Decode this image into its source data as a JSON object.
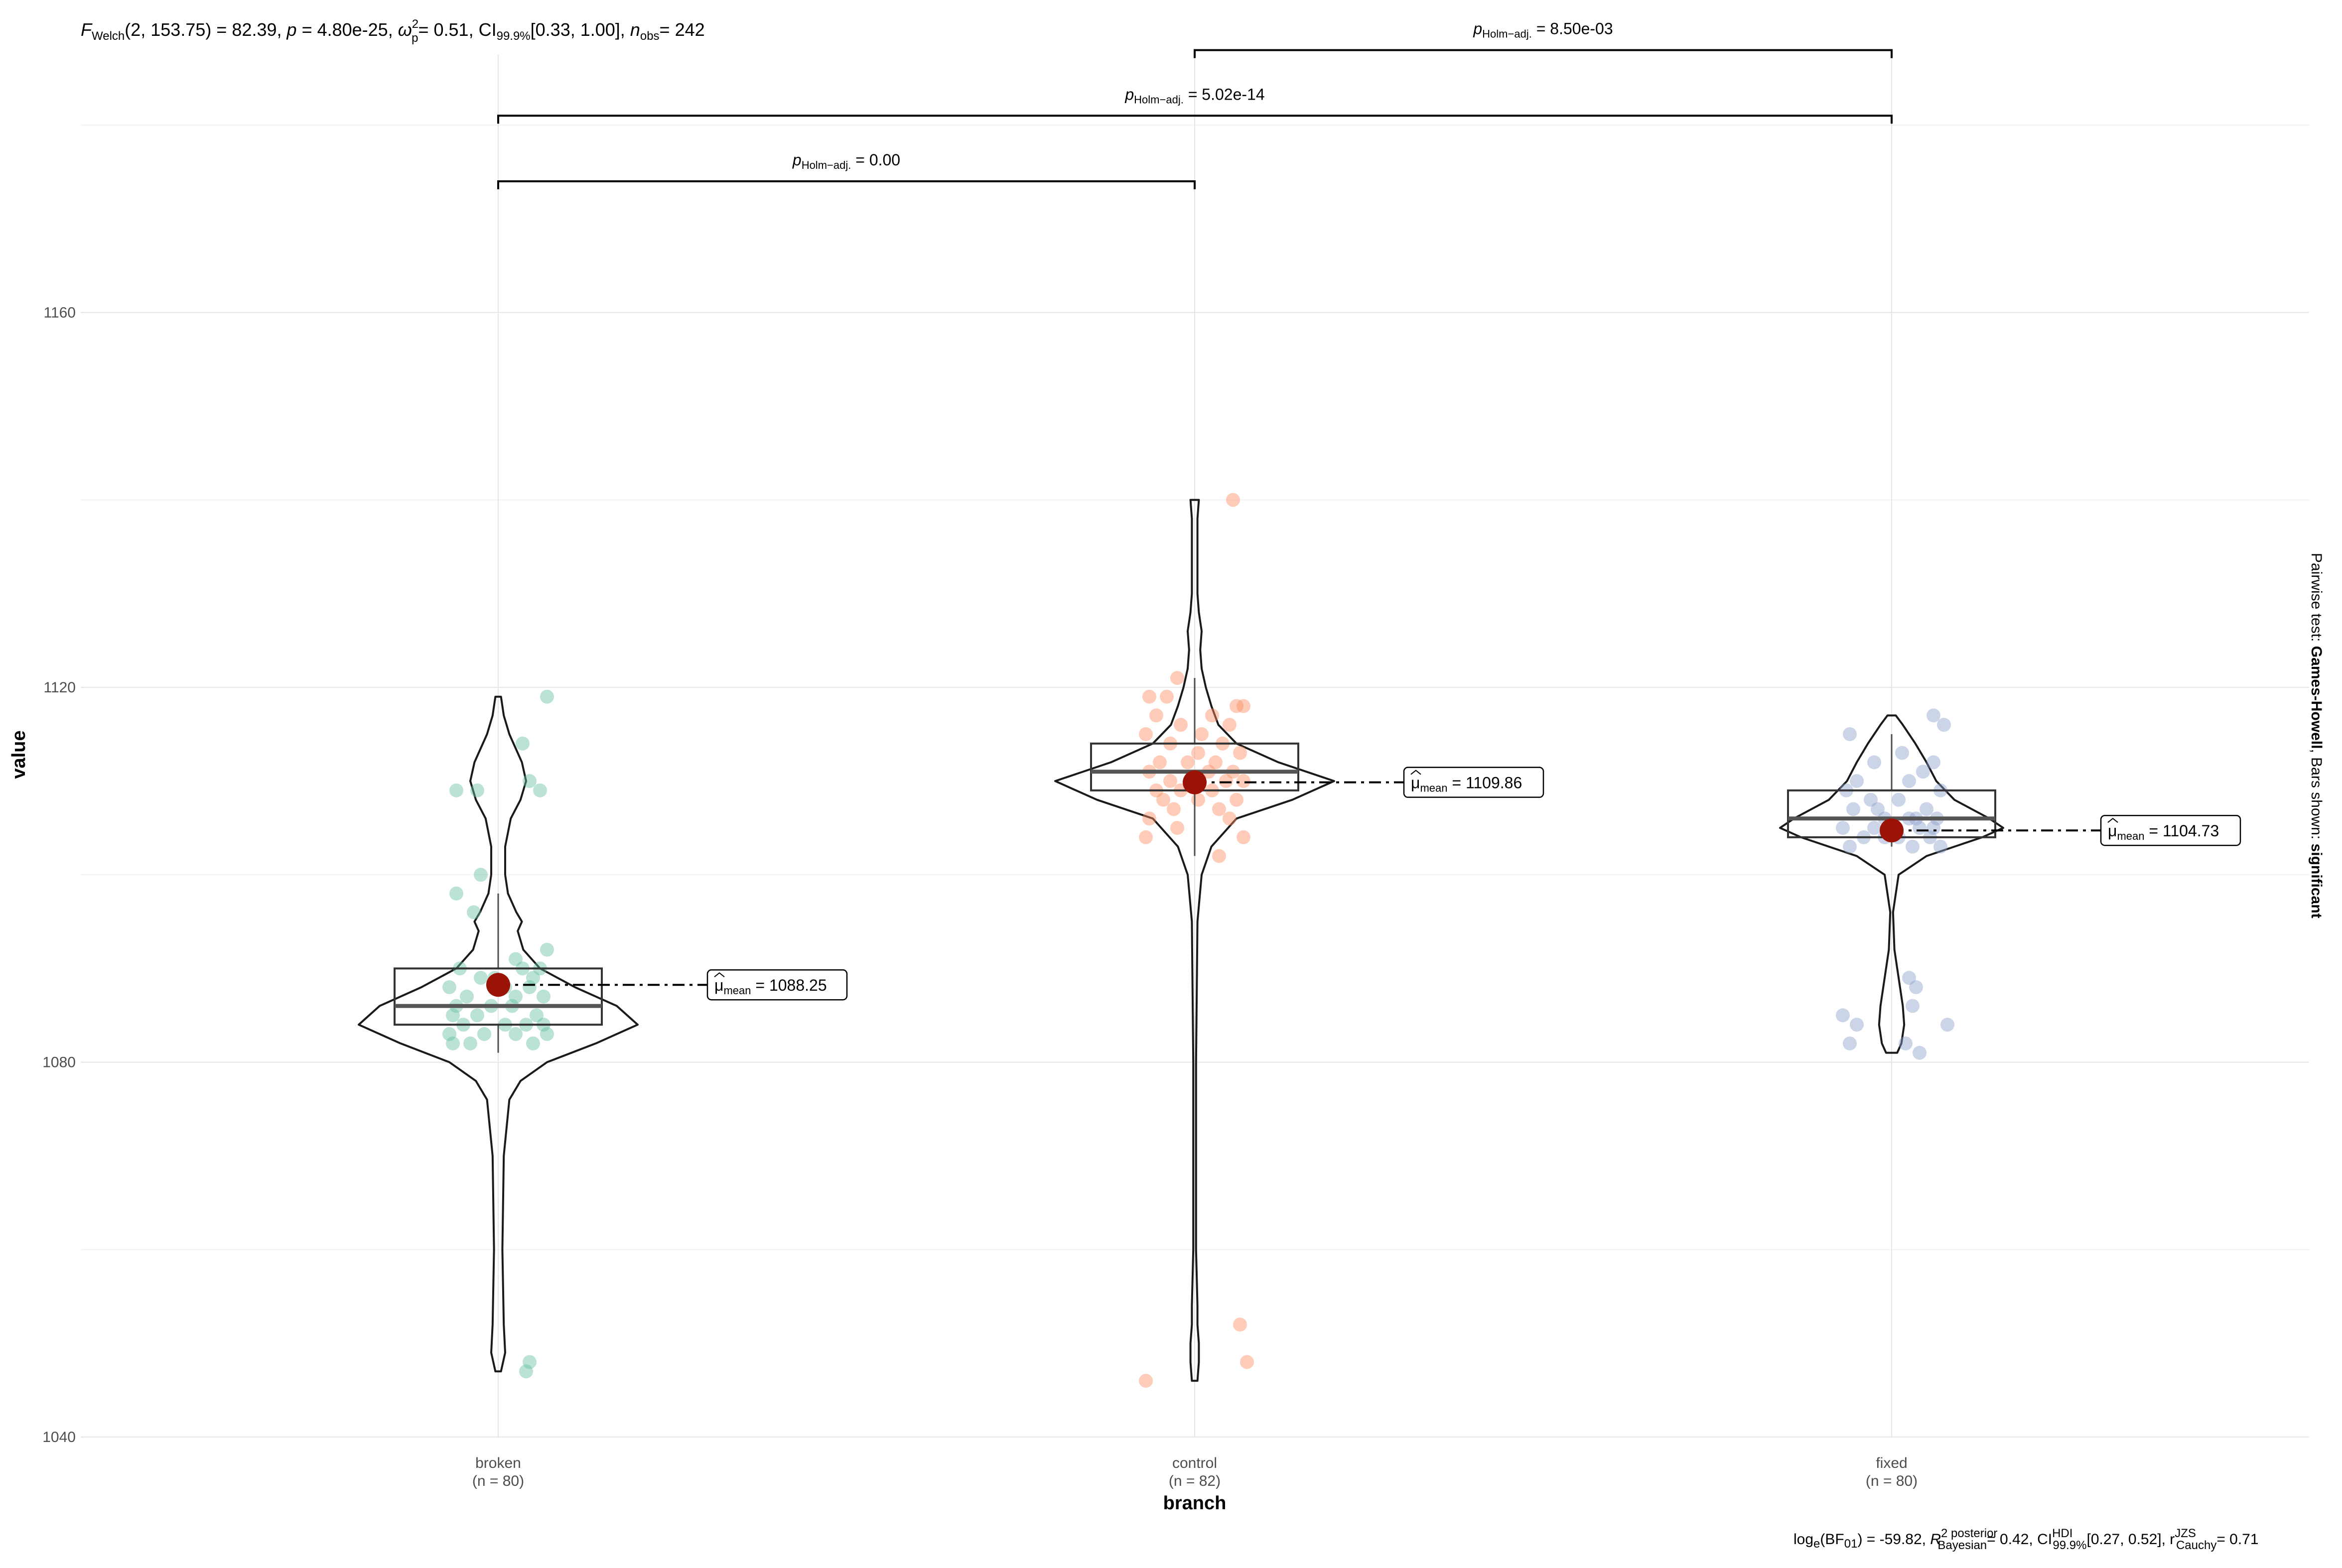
{
  "chart_data": {
    "type": "violin-box-scatter",
    "xlabel": "branch",
    "ylabel": "value",
    "ylim": [
      1040,
      1180
    ],
    "y_ticks": [
      1040,
      1080,
      1120,
      1160
    ],
    "grid": true,
    "subtitle": {
      "F_sub": "Welch",
      "df": "(2, 153.75)",
      "stat": "= 82.39, ",
      "p_label": "p",
      "p_value": "= 4.80e-25, ",
      "effect_symbol": "ω",
      "effect_sup": "2",
      "effect_sub": "p",
      "effect_value": "= 0.51, CI",
      "ci_sub": "99.9%",
      "ci_value": "[0.33, 1.00], ",
      "n_label": "n",
      "n_sub": "obs",
      "n_value": "= 242"
    },
    "caption": {
      "part1": "log",
      "part1_sub": "e",
      "part2": "(BF",
      "part2_sub": "01",
      "part3": ") = -59.82, ",
      "r2": "R",
      "r2_sup": "2 posterior",
      "r2_sub": "Bayesian",
      "r2_value": "= 0.42, CI",
      "ci_sup": "HDI",
      "ci_sub": "99.9%",
      "ci_value": "[0.27, 0.52], r",
      "r_sup": "JZS",
      "r_sub": "Cauchy",
      "r_value": "= 0.71"
    },
    "side_note": {
      "prefix": "Pairwise test: ",
      "test": "Games-Howell",
      "middle": ", Bars shown: ",
      "bars": "significant"
    },
    "groups": [
      {
        "name": "broken",
        "n_label": "(n = 80)",
        "color": "#66c2a5",
        "mean": 1088.25,
        "mean_label": "μ",
        "mean_sub": "mean",
        "mean_value": "= 1088.25",
        "box": {
          "q1": 1084,
          "median": 1086,
          "q3": 1090,
          "whisker_low": 1081,
          "whisker_high": 1098
        },
        "violin": [
          [
            1047,
            0.02
          ],
          [
            1049,
            0.05
          ],
          [
            1052,
            0.04
          ],
          [
            1060,
            0.03
          ],
          [
            1070,
            0.04
          ],
          [
            1076,
            0.08
          ],
          [
            1078,
            0.16
          ],
          [
            1080,
            0.35
          ],
          [
            1082,
            0.7
          ],
          [
            1084,
            1.0
          ],
          [
            1086,
            0.85
          ],
          [
            1088,
            0.55
          ],
          [
            1090,
            0.3
          ],
          [
            1092,
            0.18
          ],
          [
            1094,
            0.14
          ],
          [
            1095,
            0.17
          ],
          [
            1096,
            0.13
          ],
          [
            1098,
            0.07
          ],
          [
            1100,
            0.05
          ],
          [
            1103,
            0.05
          ],
          [
            1106,
            0.09
          ],
          [
            1108,
            0.16
          ],
          [
            1110,
            0.2
          ],
          [
            1112,
            0.17
          ],
          [
            1115,
            0.08
          ],
          [
            1117,
            0.04
          ],
          [
            1119,
            0.02
          ]
        ],
        "points": [
          [
            1109,
            -0.12
          ],
          [
            1109,
            -0.06
          ],
          [
            1110,
            0.09
          ],
          [
            1109,
            0.12
          ],
          [
            1114,
            0.07
          ],
          [
            1119,
            0.14
          ],
          [
            1100,
            -0.05
          ],
          [
            1098,
            -0.12
          ],
          [
            1096,
            -0.07
          ],
          [
            1092,
            0.14
          ],
          [
            1091,
            0.05
          ],
          [
            1090,
            -0.11
          ],
          [
            1089,
            -0.05
          ],
          [
            1089,
            0.1
          ],
          [
            1090,
            0.07
          ],
          [
            1088,
            -0.14
          ],
          [
            1088,
            0.02
          ],
          [
            1087,
            0.13
          ],
          [
            1087,
            -0.09
          ],
          [
            1086,
            0.04
          ],
          [
            1086,
            -0.02
          ],
          [
            1085,
            0.11
          ],
          [
            1085,
            -0.13
          ],
          [
            1085,
            -0.06
          ],
          [
            1084,
            0.08
          ],
          [
            1084,
            0.02
          ],
          [
            1084,
            -0.1
          ],
          [
            1083,
            0.14
          ],
          [
            1083,
            -0.14
          ],
          [
            1083,
            0.05
          ],
          [
            1082,
            -0.08
          ],
          [
            1082,
            0.1
          ],
          [
            1082,
            -0.13
          ],
          [
            1086,
            -0.12
          ],
          [
            1088,
            0.09
          ],
          [
            1089,
            -0.01
          ],
          [
            1084,
            0.13
          ],
          [
            1083,
            -0.04
          ],
          [
            1090,
            0.12
          ],
          [
            1087,
            0.05
          ],
          [
            1048,
            0.09
          ],
          [
            1047,
            0.08
          ]
        ]
      },
      {
        "name": "control",
        "n_label": "(n = 82)",
        "color": "#fc8d62",
        "mean": 1109.86,
        "mean_label": "μ",
        "mean_sub": "mean",
        "mean_value": "= 1109.86",
        "box": {
          "q1": 1109,
          "median": 1111,
          "q3": 1114,
          "whisker_low": 1102,
          "whisker_high": 1121
        },
        "violin": [
          [
            1046,
            0.02
          ],
          [
            1048,
            0.03
          ],
          [
            1050,
            0.03
          ],
          [
            1052,
            0.02
          ],
          [
            1054,
            0.02
          ],
          [
            1060,
            0.01
          ],
          [
            1080,
            0.01
          ],
          [
            1095,
            0.02
          ],
          [
            1100,
            0.05
          ],
          [
            1103,
            0.12
          ],
          [
            1106,
            0.3
          ],
          [
            1108,
            0.7
          ],
          [
            1110,
            1.0
          ],
          [
            1112,
            0.6
          ],
          [
            1114,
            0.3
          ],
          [
            1116,
            0.17
          ],
          [
            1118,
            0.12
          ],
          [
            1120,
            0.08
          ],
          [
            1122,
            0.05
          ],
          [
            1124,
            0.04
          ],
          [
            1126,
            0.05
          ],
          [
            1128,
            0.03
          ],
          [
            1130,
            0.02
          ],
          [
            1134,
            0.02
          ],
          [
            1138,
            0.02
          ],
          [
            1140,
            0.03
          ]
        ],
        "points": [
          [
            1140,
            0.11
          ],
          [
            1119,
            -0.13
          ],
          [
            1119,
            -0.08
          ],
          [
            1121,
            -0.05
          ],
          [
            1118,
            0.14
          ],
          [
            1118,
            0.12
          ],
          [
            1117,
            0.05
          ],
          [
            1117,
            -0.11
          ],
          [
            1116,
            0.1
          ],
          [
            1116,
            -0.04
          ],
          [
            1115,
            0.02
          ],
          [
            1115,
            -0.14
          ],
          [
            1114,
            0.08
          ],
          [
            1114,
            -0.07
          ],
          [
            1113,
            0.13
          ],
          [
            1113,
            0.01
          ],
          [
            1112,
            -0.1
          ],
          [
            1112,
            0.06
          ],
          [
            1112,
            -0.02
          ],
          [
            1111,
            0.11
          ],
          [
            1111,
            -0.13
          ],
          [
            1111,
            0.04
          ],
          [
            1110,
            -0.07
          ],
          [
            1110,
            0.09
          ],
          [
            1110,
            -0.01
          ],
          [
            1110,
            0.14
          ],
          [
            1109,
            -0.11
          ],
          [
            1109,
            0.05
          ],
          [
            1109,
            -0.04
          ],
          [
            1108,
            0.12
          ],
          [
            1108,
            -0.09
          ],
          [
            1108,
            0.01
          ],
          [
            1107,
            -0.06
          ],
          [
            1107,
            0.07
          ],
          [
            1106,
            -0.13
          ],
          [
            1106,
            0.1
          ],
          [
            1105,
            -0.05
          ],
          [
            1104,
            -0.14
          ],
          [
            1104,
            0.14
          ],
          [
            1102,
            0.07
          ],
          [
            1052,
            0.13
          ],
          [
            1048,
            0.15
          ],
          [
            1046,
            -0.14
          ]
        ]
      },
      {
        "name": "fixed",
        "n_label": "(n = 80)",
        "color": "#8da0cb",
        "mean": 1104.73,
        "mean_label": "μ",
        "mean_sub": "mean",
        "mean_value": "= 1104.73",
        "box": {
          "q1": 1104,
          "median": 1106,
          "q3": 1109,
          "whisker_low": 1103,
          "whisker_high": 1115
        },
        "violin": [
          [
            1081,
            0.04
          ],
          [
            1082,
            0.07
          ],
          [
            1084,
            0.09
          ],
          [
            1086,
            0.08
          ],
          [
            1088,
            0.06
          ],
          [
            1090,
            0.04
          ],
          [
            1092,
            0.02
          ],
          [
            1096,
            0.01
          ],
          [
            1100,
            0.05
          ],
          [
            1102,
            0.25
          ],
          [
            1104,
            0.65
          ],
          [
            1105,
            0.8
          ],
          [
            1106,
            0.7
          ],
          [
            1108,
            0.45
          ],
          [
            1110,
            0.32
          ],
          [
            1112,
            0.25
          ],
          [
            1114,
            0.17
          ],
          [
            1116,
            0.08
          ],
          [
            1117,
            0.03
          ]
        ],
        "points": [
          [
            1117,
            0.12
          ],
          [
            1116,
            0.15
          ],
          [
            1115,
            -0.12
          ],
          [
            1113,
            0.03
          ],
          [
            1112,
            -0.05
          ],
          [
            1112,
            0.12
          ],
          [
            1111,
            0.09
          ],
          [
            1110,
            -0.1
          ],
          [
            1110,
            0.05
          ],
          [
            1109,
            -0.13
          ],
          [
            1109,
            0.14
          ],
          [
            1108,
            0.02
          ],
          [
            1108,
            -0.06
          ],
          [
            1107,
            0.1
          ],
          [
            1107,
            -0.11
          ],
          [
            1106,
            0.05
          ],
          [
            1106,
            -0.02
          ],
          [
            1106,
            0.13
          ],
          [
            1105,
            -0.14
          ],
          [
            1105,
            0.08
          ],
          [
            1105,
            -0.05
          ],
          [
            1104,
            0.11
          ],
          [
            1104,
            -0.08
          ],
          [
            1104,
            0.02
          ],
          [
            1103,
            -0.12
          ],
          [
            1103,
            0.06
          ],
          [
            1103,
            0.14
          ],
          [
            1104,
            -0.02
          ],
          [
            1106,
            0.07
          ],
          [
            1105,
            0.12
          ],
          [
            1107,
            -0.04
          ],
          [
            1089,
            0.05
          ],
          [
            1088,
            0.07
          ],
          [
            1085,
            -0.14
          ],
          [
            1084,
            -0.1
          ],
          [
            1084,
            0.16
          ],
          [
            1082,
            -0.12
          ],
          [
            1082,
            0.04
          ],
          [
            1081,
            0.08
          ],
          [
            1086,
            0.06
          ]
        ]
      }
    ],
    "comparisons": [
      {
        "from": 0,
        "to": 1,
        "level": 1174,
        "label_p": "p",
        "label_sub": "Holm−adj.",
        "label_value": "= 0.00"
      },
      {
        "from": 0,
        "to": 2,
        "level": 1181,
        "label_p": "p",
        "label_sub": "Holm−adj.",
        "label_value": "= 5.02e-14"
      },
      {
        "from": 1,
        "to": 2,
        "level": 1188,
        "label_p": "p",
        "label_sub": "Holm−adj.",
        "label_value": "= 8.50e-03"
      }
    ],
    "mean_point_color": "#9b1306"
  }
}
